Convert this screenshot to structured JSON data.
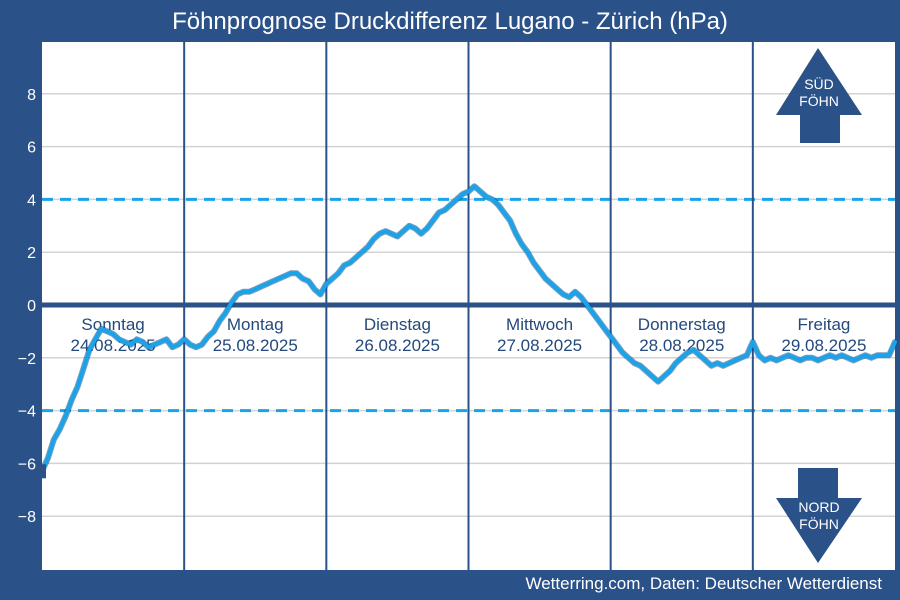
{
  "title": "Föhnprognose Druckdifferenz Lugano - Zürich (hPa)",
  "credit": "Wetterring.com, Daten: Deutscher Wetterdienst",
  "colors": {
    "background": "#2a5188",
    "plot": "#ffffff",
    "line": "#1aa3e8",
    "threshold": "#1aa3e8",
    "zero_line": "#2a5188",
    "day_divider": "#2a5188",
    "grid": "#d3d3d3",
    "arrow": "#2a5188"
  },
  "arrows": {
    "south": [
      "SÜD",
      "FÖHN"
    ],
    "north": [
      "NORD",
      "FÖHN"
    ]
  },
  "chart_data": {
    "type": "line",
    "title": "Föhnprognose Druckdifferenz Lugano - Zürich (hPa)",
    "ylabel": "",
    "xlabel": "",
    "ylim": [
      -10,
      10
    ],
    "yticks": [
      -8,
      -6,
      -4,
      -2,
      0,
      2,
      4,
      6,
      8
    ],
    "grid": true,
    "thresholds": [
      4,
      -4
    ],
    "days": [
      {
        "name": "Sonntag",
        "date": "24.08.2025"
      },
      {
        "name": "Montag",
        "date": "25.08.2025"
      },
      {
        "name": "Dienstag",
        "date": "26.08.2025"
      },
      {
        "name": "Mittwoch",
        "date": "27.08.2025"
      },
      {
        "name": "Donnerstag",
        "date": "28.08.2025"
      },
      {
        "name": "Freitag",
        "date": "29.08.2025"
      }
    ],
    "series": [
      {
        "unit": "hours since 24.08.2025 00:00",
        "x": [
          0,
          1,
          2,
          3,
          4,
          5,
          6,
          7,
          8,
          9,
          10,
          11,
          12,
          13,
          14,
          15,
          16,
          17,
          18,
          19,
          20,
          21,
          22,
          23,
          24,
          25,
          26,
          27,
          28,
          29,
          30,
          31,
          32,
          33,
          34,
          35,
          36,
          37,
          38,
          39,
          40,
          41,
          42,
          43,
          44,
          45,
          46,
          47,
          48,
          49,
          50,
          51,
          52,
          53,
          54,
          55,
          56,
          57,
          58,
          59,
          60,
          61,
          62,
          63,
          64,
          65,
          66,
          67,
          68,
          69,
          70,
          71,
          72,
          73,
          74,
          75,
          76,
          77,
          78,
          79,
          80,
          81,
          82,
          83,
          84,
          85,
          86,
          87,
          88,
          89,
          90,
          91,
          92,
          93,
          94,
          95,
          96,
          97,
          98,
          99,
          100,
          101,
          102,
          103,
          104,
          105,
          106,
          107,
          108,
          109,
          110,
          111,
          112,
          113,
          114,
          115,
          116,
          117,
          118,
          119,
          120,
          121,
          122,
          123,
          124,
          125,
          126,
          127,
          128,
          129,
          130,
          131,
          132,
          133,
          134,
          135,
          136,
          137,
          138,
          139,
          140,
          141,
          142,
          143,
          144
        ],
        "values": [
          -6.3,
          -5.8,
          -5.1,
          -4.7,
          -4.2,
          -3.6,
          -3.1,
          -2.4,
          -1.7,
          -1.3,
          -0.9,
          -1.0,
          -1.1,
          -1.3,
          -1.4,
          -1.5,
          -1.3,
          -1.4,
          -1.6,
          -1.5,
          -1.4,
          -1.3,
          -1.6,
          -1.5,
          -1.3,
          -1.5,
          -1.6,
          -1.5,
          -1.2,
          -1.0,
          -0.6,
          -0.3,
          0.1,
          0.4,
          0.5,
          0.5,
          0.6,
          0.7,
          0.8,
          0.9,
          1.0,
          1.1,
          1.2,
          1.2,
          1.0,
          0.9,
          0.6,
          0.4,
          0.8,
          1.0,
          1.2,
          1.5,
          1.6,
          1.8,
          2.0,
          2.2,
          2.5,
          2.7,
          2.8,
          2.7,
          2.6,
          2.8,
          3.0,
          2.9,
          2.7,
          2.9,
          3.2,
          3.5,
          3.6,
          3.8,
          4.0,
          4.2,
          4.3,
          4.5,
          4.3,
          4.1,
          4.0,
          3.8,
          3.5,
          3.2,
          2.7,
          2.3,
          2.0,
          1.6,
          1.3,
          1.0,
          0.8,
          0.6,
          0.4,
          0.3,
          0.5,
          0.3,
          0.0,
          -0.3,
          -0.6,
          -0.9,
          -1.2,
          -1.5,
          -1.8,
          -2.0,
          -2.2,
          -2.3,
          -2.5,
          -2.7,
          -2.9,
          -2.7,
          -2.5,
          -2.2,
          -2.0,
          -1.8,
          -1.7,
          -1.9,
          -2.1,
          -2.3,
          -2.2,
          -2.3,
          -2.2,
          -2.1,
          -2.0,
          -1.9,
          -1.4,
          -1.9,
          -2.1,
          -2.0,
          -2.1,
          -2.0,
          -1.9,
          -2.0,
          -2.1,
          -2.0,
          -2.0,
          -2.1,
          -2.0,
          -1.9,
          -2.0,
          -1.9,
          -2.0,
          -2.1,
          -2.0,
          -1.9,
          -2.0,
          -1.9,
          -1.9,
          -1.9,
          -1.4
        ]
      }
    ]
  }
}
